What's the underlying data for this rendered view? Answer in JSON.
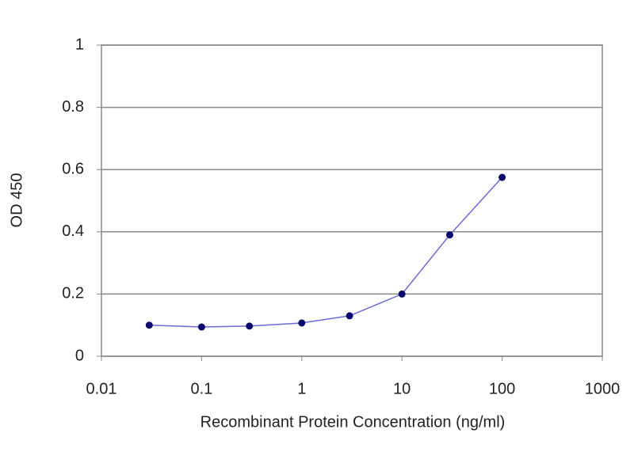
{
  "chart_data": {
    "type": "line",
    "x_label": "Recombinant Protein Concentration (ng/ml)",
    "y_label": "OD 450",
    "x": [
      0.03,
      0.1,
      0.3,
      1,
      3,
      10,
      30,
      100
    ],
    "series": [
      {
        "name": "OD 450",
        "color": "#6b6bd6",
        "marker_color": "#0a0a6e",
        "values": [
          0.1,
          0.094,
          0.097,
          0.107,
          0.13,
          0.2,
          0.39,
          0.575
        ]
      }
    ],
    "xscale": "log",
    "xlim": [
      0.01,
      1000
    ],
    "xticks": [
      0.01,
      0.1,
      1,
      10,
      100,
      1000
    ],
    "ylim": [
      0,
      1
    ],
    "yticks": [
      0,
      0.2,
      0.4,
      0.6,
      0.8,
      1
    ],
    "grid": true
  }
}
